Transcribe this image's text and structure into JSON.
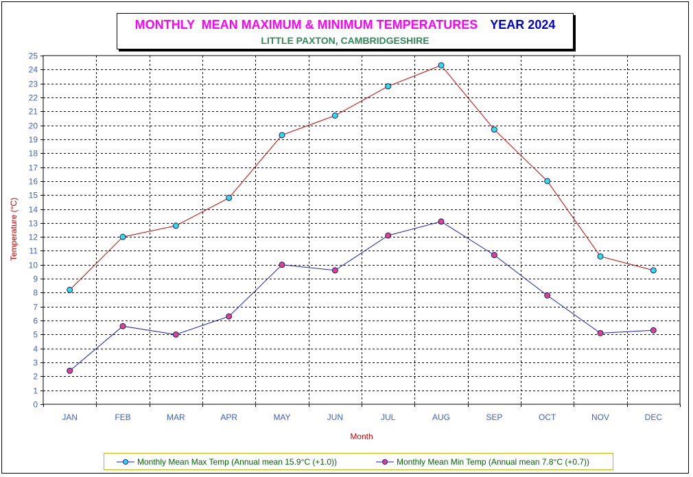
{
  "title": {
    "main": "MONTHLY  MEAN MAXIMUM & MINIMUM TEMPERATURES",
    "year": "YEAR 2024",
    "subtitle": "LITTLE PAXTON, CAMBRIDGESHIRE"
  },
  "colors": {
    "max_line": "#cc0000",
    "min_line": "#1a1acc",
    "max_marker": "#33dddd",
    "min_marker": "#dd4488",
    "axis_text": "#3a5fcd",
    "axis_title": "#cc0000"
  },
  "chart_data": {
    "type": "line",
    "categories": [
      "JAN",
      "FEB",
      "MAR",
      "APR",
      "MAY",
      "JUN",
      "JUL",
      "AUG",
      "SEP",
      "OCT",
      "NOV",
      "DEC"
    ],
    "series": [
      {
        "name": "Monthly Mean Max Temp (Annual mean 15.9°C (+1.0))",
        "values": [
          8.2,
          12.0,
          12.8,
          14.8,
          19.3,
          20.7,
          22.8,
          24.3,
          19.7,
          16.0,
          10.6,
          9.6
        ]
      },
      {
        "name": "Monthly Mean Min Temp (Annual mean 7.8°C (+0.7))",
        "values": [
          2.4,
          5.6,
          5.0,
          6.3,
          10.0,
          9.6,
          12.1,
          13.1,
          10.7,
          7.8,
          5.1,
          5.3
        ]
      }
    ],
    "xlabel": "Month",
    "ylabel": "Temperature (°C)",
    "ylim": [
      0,
      25
    ],
    "ytick_step": 1,
    "grid": true,
    "legend": "bottom"
  }
}
